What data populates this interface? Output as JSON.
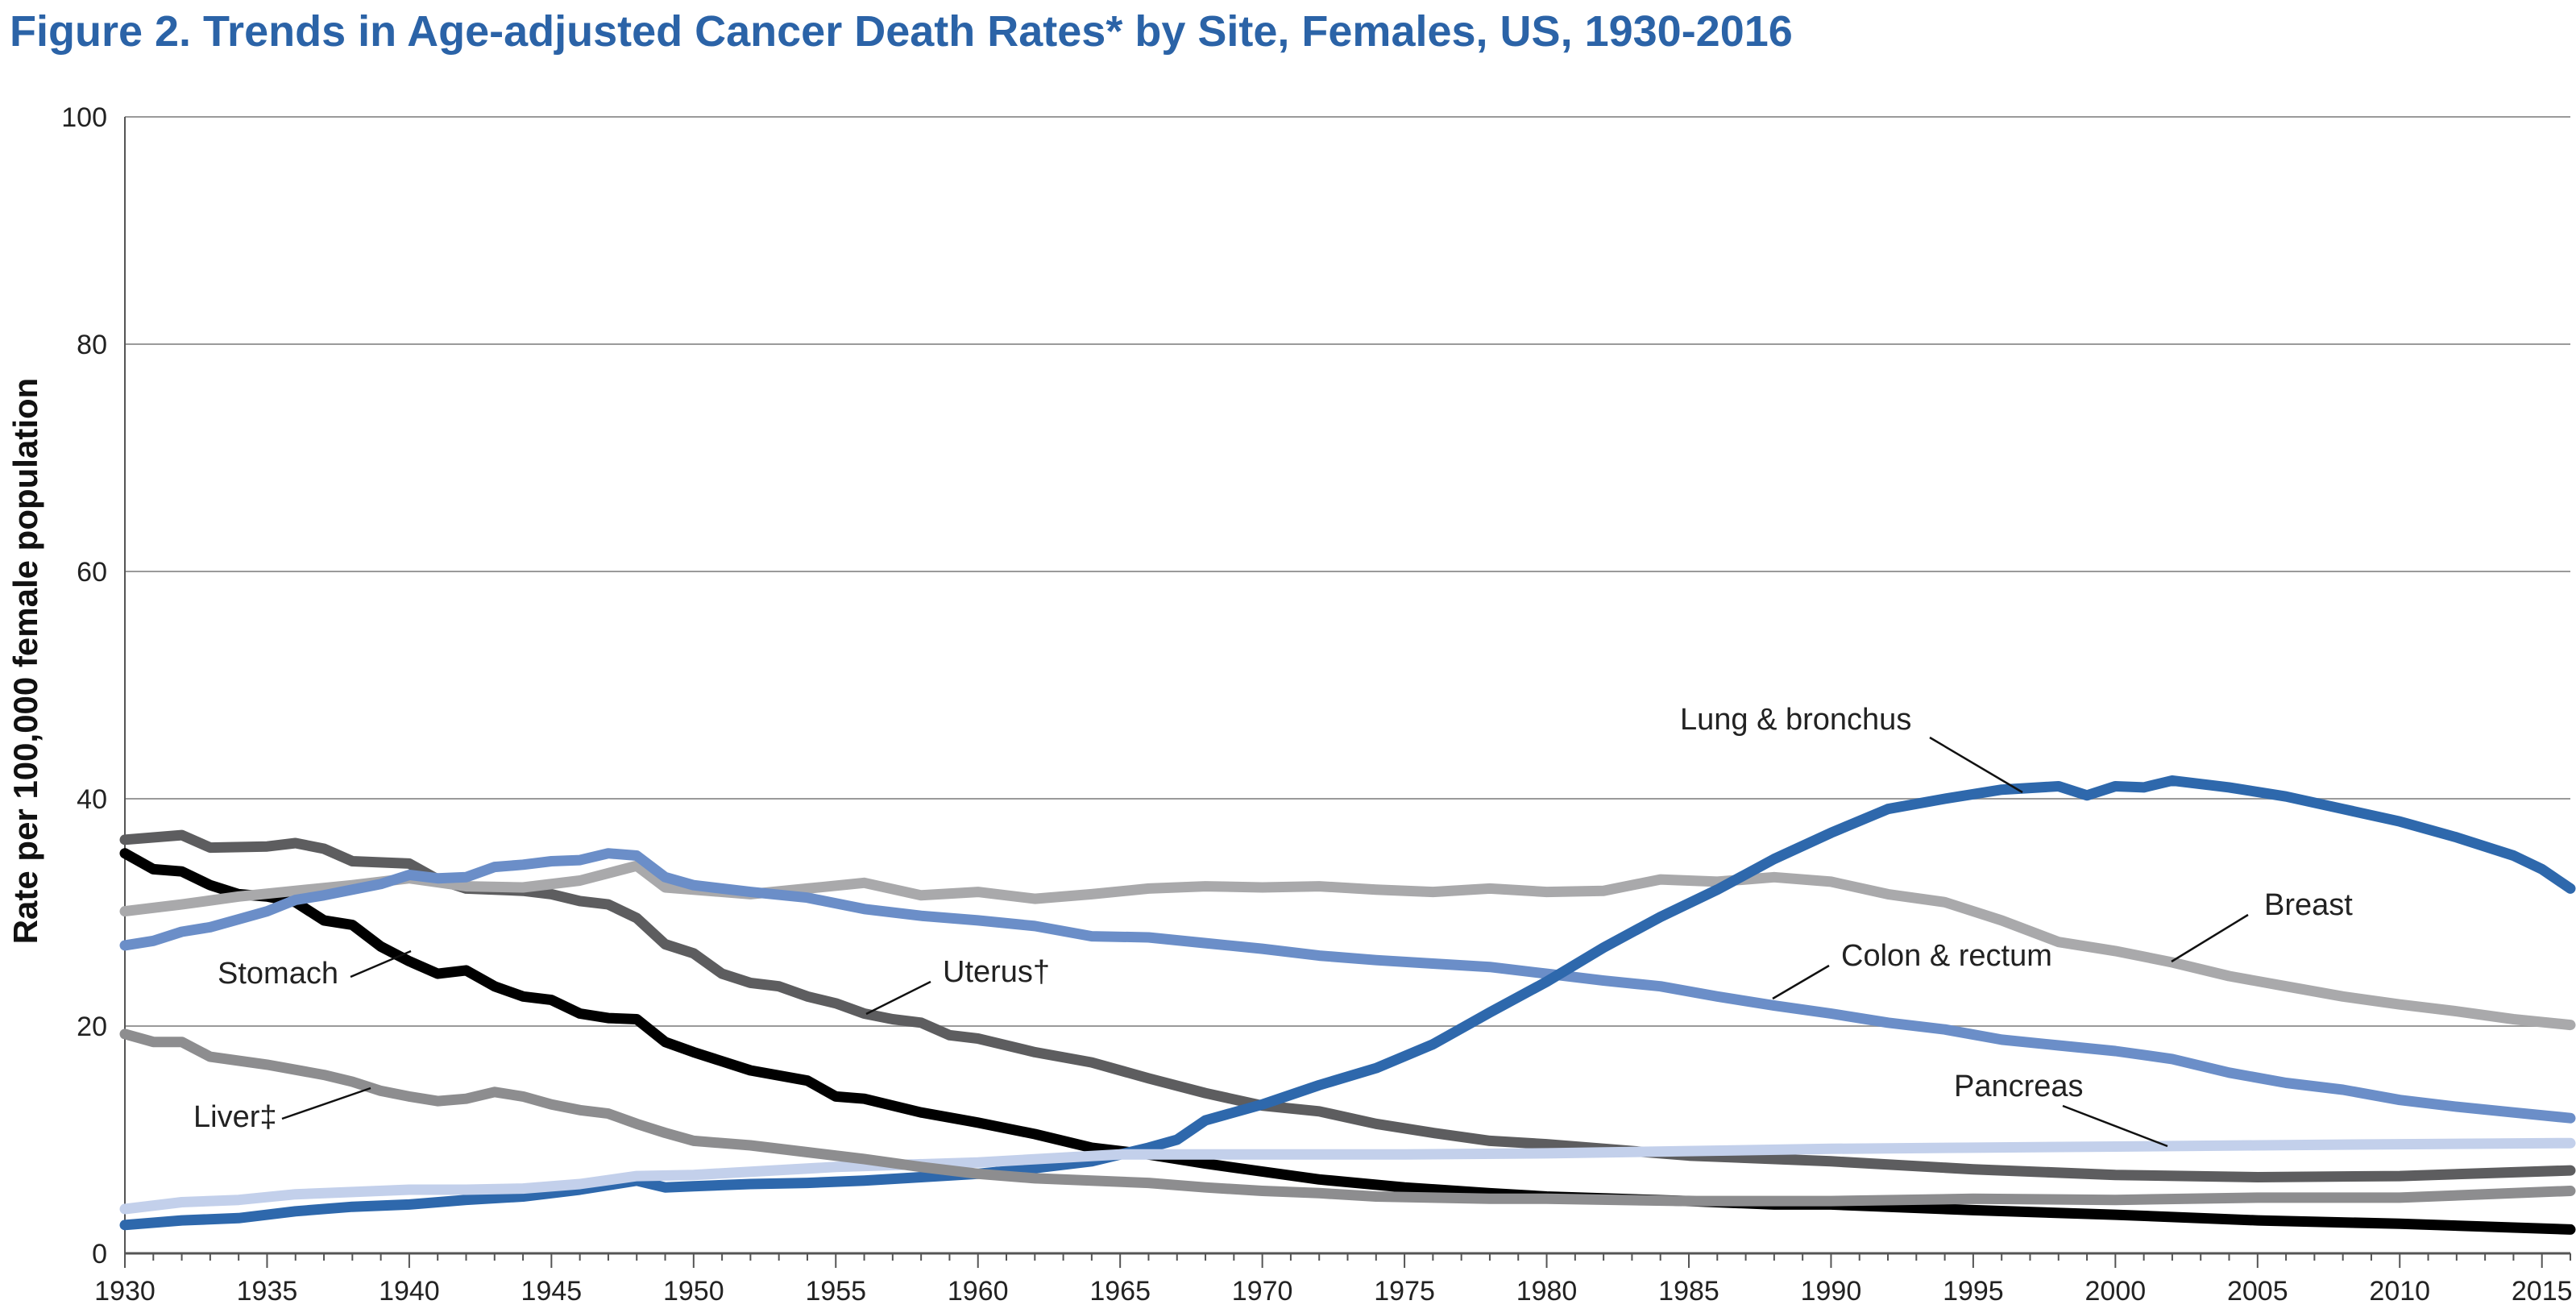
{
  "chart_data": {
    "type": "line",
    "title": "Figure 2. Trends in Age-adjusted Cancer Death Rates* by Site, Females, US, 1930-2016",
    "xlabel": "",
    "ylabel": "Rate per 100,000 female population",
    "xlim": [
      1930,
      2016
    ],
    "ylim": [
      0,
      100
    ],
    "xticks": [
      1930,
      1935,
      1940,
      1945,
      1950,
      1955,
      1960,
      1965,
      1970,
      1975,
      1980,
      1985,
      1990,
      1995,
      2000,
      2005,
      2010,
      2015
    ],
    "yticks": [
      0,
      20,
      40,
      60,
      80,
      100
    ],
    "grid": true,
    "legend": "none",
    "series": [
      {
        "name": "Stomach",
        "color": "#000000",
        "points": [
          [
            1930,
            35.2
          ],
          [
            1931,
            33.8
          ],
          [
            1932,
            33.6
          ],
          [
            1933,
            32.4
          ],
          [
            1934,
            31.6
          ],
          [
            1935,
            31.4
          ],
          [
            1936,
            30.9
          ],
          [
            1937,
            29.3
          ],
          [
            1938,
            28.9
          ],
          [
            1939,
            27.0
          ],
          [
            1940,
            25.7
          ],
          [
            1941,
            24.6
          ],
          [
            1942,
            24.9
          ],
          [
            1943,
            23.5
          ],
          [
            1944,
            22.6
          ],
          [
            1945,
            22.3
          ],
          [
            1946,
            21.1
          ],
          [
            1947,
            20.7
          ],
          [
            1948,
            20.6
          ],
          [
            1949,
            18.6
          ],
          [
            1950,
            17.7
          ],
          [
            1952,
            16.1
          ],
          [
            1954,
            15.2
          ],
          [
            1955,
            13.8
          ],
          [
            1956,
            13.6
          ],
          [
            1958,
            12.4
          ],
          [
            1960,
            11.5
          ],
          [
            1962,
            10.5
          ],
          [
            1964,
            9.3
          ],
          [
            1966,
            8.7
          ],
          [
            1968,
            7.9
          ],
          [
            1970,
            7.2
          ],
          [
            1972,
            6.5
          ],
          [
            1975,
            5.8
          ],
          [
            1978,
            5.3
          ],
          [
            1980,
            5.0
          ],
          [
            1985,
            4.6
          ],
          [
            1988,
            4.3
          ],
          [
            1990,
            4.3
          ],
          [
            1995,
            3.8
          ],
          [
            2000,
            3.4
          ],
          [
            2005,
            2.9
          ],
          [
            2010,
            2.6
          ],
          [
            2016,
            2.1
          ]
        ]
      },
      {
        "name": "Uterus†",
        "color": "#5d5d5f",
        "points": [
          [
            1930,
            36.4
          ],
          [
            1932,
            36.8
          ],
          [
            1933,
            35.7
          ],
          [
            1935,
            35.8
          ],
          [
            1936,
            36.1
          ],
          [
            1937,
            35.6
          ],
          [
            1938,
            34.5
          ],
          [
            1940,
            34.3
          ],
          [
            1941,
            32.9
          ],
          [
            1942,
            32.1
          ],
          [
            1944,
            31.9
          ],
          [
            1945,
            31.6
          ],
          [
            1946,
            31.0
          ],
          [
            1947,
            30.7
          ],
          [
            1948,
            29.5
          ],
          [
            1949,
            27.2
          ],
          [
            1950,
            26.4
          ],
          [
            1951,
            24.6
          ],
          [
            1952,
            23.8
          ],
          [
            1953,
            23.5
          ],
          [
            1954,
            22.6
          ],
          [
            1955,
            22.0
          ],
          [
            1956,
            21.1
          ],
          [
            1957,
            20.6
          ],
          [
            1958,
            20.3
          ],
          [
            1959,
            19.2
          ],
          [
            1960,
            18.9
          ],
          [
            1962,
            17.7
          ],
          [
            1964,
            16.8
          ],
          [
            1966,
            15.4
          ],
          [
            1968,
            14.1
          ],
          [
            1970,
            13.0
          ],
          [
            1972,
            12.5
          ],
          [
            1974,
            11.4
          ],
          [
            1976,
            10.6
          ],
          [
            1978,
            9.9
          ],
          [
            1980,
            9.6
          ],
          [
            1985,
            8.6
          ],
          [
            1990,
            8.1
          ],
          [
            1995,
            7.4
          ],
          [
            2000,
            6.9
          ],
          [
            2005,
            6.7
          ],
          [
            2010,
            6.8
          ],
          [
            2016,
            7.3
          ]
        ]
      },
      {
        "name": "Breast",
        "color": "#a9a9ab",
        "points": [
          [
            1930,
            30.1
          ],
          [
            1932,
            30.7
          ],
          [
            1934,
            31.4
          ],
          [
            1936,
            31.9
          ],
          [
            1938,
            32.4
          ],
          [
            1940,
            33.0
          ],
          [
            1942,
            32.3
          ],
          [
            1944,
            32.2
          ],
          [
            1946,
            32.8
          ],
          [
            1948,
            34.1
          ],
          [
            1949,
            32.2
          ],
          [
            1950,
            32.0
          ],
          [
            1952,
            31.6
          ],
          [
            1954,
            32.1
          ],
          [
            1956,
            32.6
          ],
          [
            1958,
            31.5
          ],
          [
            1960,
            31.8
          ],
          [
            1962,
            31.2
          ],
          [
            1964,
            31.6
          ],
          [
            1966,
            32.1
          ],
          [
            1968,
            32.3
          ],
          [
            1970,
            32.2
          ],
          [
            1972,
            32.3
          ],
          [
            1974,
            32.0
          ],
          [
            1976,
            31.8
          ],
          [
            1978,
            32.1
          ],
          [
            1980,
            31.8
          ],
          [
            1982,
            31.9
          ],
          [
            1984,
            32.9
          ],
          [
            1986,
            32.7
          ],
          [
            1988,
            33.1
          ],
          [
            1990,
            32.7
          ],
          [
            1992,
            31.6
          ],
          [
            1994,
            30.9
          ],
          [
            1996,
            29.3
          ],
          [
            1998,
            27.4
          ],
          [
            2000,
            26.6
          ],
          [
            2002,
            25.6
          ],
          [
            2004,
            24.4
          ],
          [
            2006,
            23.5
          ],
          [
            2008,
            22.6
          ],
          [
            2010,
            21.9
          ],
          [
            2012,
            21.3
          ],
          [
            2014,
            20.6
          ],
          [
            2016,
            20.1
          ]
        ]
      },
      {
        "name": "Colon & rectum",
        "color": "#6b8ec8",
        "points": [
          [
            1930,
            27.1
          ],
          [
            1931,
            27.5
          ],
          [
            1932,
            28.3
          ],
          [
            1933,
            28.7
          ],
          [
            1934,
            29.4
          ],
          [
            1935,
            30.1
          ],
          [
            1936,
            31.1
          ],
          [
            1937,
            31.5
          ],
          [
            1938,
            32.0
          ],
          [
            1939,
            32.5
          ],
          [
            1940,
            33.3
          ],
          [
            1941,
            33.0
          ],
          [
            1942,
            33.1
          ],
          [
            1943,
            34.0
          ],
          [
            1944,
            34.2
          ],
          [
            1945,
            34.5
          ],
          [
            1946,
            34.6
          ],
          [
            1947,
            35.2
          ],
          [
            1948,
            35.0
          ],
          [
            1949,
            33.1
          ],
          [
            1950,
            32.4
          ],
          [
            1952,
            31.8
          ],
          [
            1954,
            31.3
          ],
          [
            1956,
            30.3
          ],
          [
            1958,
            29.7
          ],
          [
            1960,
            29.3
          ],
          [
            1962,
            28.8
          ],
          [
            1964,
            27.9
          ],
          [
            1966,
            27.8
          ],
          [
            1968,
            27.3
          ],
          [
            1970,
            26.8
          ],
          [
            1972,
            26.2
          ],
          [
            1974,
            25.8
          ],
          [
            1976,
            25.5
          ],
          [
            1978,
            25.2
          ],
          [
            1980,
            24.6
          ],
          [
            1982,
            24.0
          ],
          [
            1984,
            23.5
          ],
          [
            1986,
            22.6
          ],
          [
            1988,
            21.8
          ],
          [
            1990,
            21.1
          ],
          [
            1992,
            20.3
          ],
          [
            1994,
            19.7
          ],
          [
            1996,
            18.8
          ],
          [
            1998,
            18.3
          ],
          [
            2000,
            17.8
          ],
          [
            2002,
            17.1
          ],
          [
            2004,
            15.9
          ],
          [
            2006,
            15.0
          ],
          [
            2008,
            14.4
          ],
          [
            2010,
            13.5
          ],
          [
            2012,
            12.9
          ],
          [
            2014,
            12.4
          ],
          [
            2016,
            11.9
          ]
        ]
      },
      {
        "name": "Lung & bronchus",
        "color": "#2e68ac",
        "points": [
          [
            1930,
            2.5
          ],
          [
            1932,
            2.9
          ],
          [
            1934,
            3.1
          ],
          [
            1936,
            3.7
          ],
          [
            1938,
            4.1
          ],
          [
            1940,
            4.3
          ],
          [
            1942,
            4.7
          ],
          [
            1944,
            5.0
          ],
          [
            1946,
            5.6
          ],
          [
            1948,
            6.4
          ],
          [
            1949,
            5.8
          ],
          [
            1950,
            5.9
          ],
          [
            1952,
            6.1
          ],
          [
            1954,
            6.2
          ],
          [
            1956,
            6.4
          ],
          [
            1958,
            6.7
          ],
          [
            1960,
            7.0
          ],
          [
            1962,
            7.5
          ],
          [
            1964,
            8.1
          ],
          [
            1966,
            9.3
          ],
          [
            1967,
            10.0
          ],
          [
            1968,
            11.7
          ],
          [
            1970,
            13.1
          ],
          [
            1972,
            14.8
          ],
          [
            1974,
            16.3
          ],
          [
            1976,
            18.4
          ],
          [
            1978,
            21.2
          ],
          [
            1980,
            23.9
          ],
          [
            1982,
            26.9
          ],
          [
            1984,
            29.6
          ],
          [
            1986,
            32.0
          ],
          [
            1988,
            34.7
          ],
          [
            1990,
            37.0
          ],
          [
            1992,
            39.1
          ],
          [
            1994,
            40.0
          ],
          [
            1996,
            40.8
          ],
          [
            1998,
            41.1
          ],
          [
            1999,
            40.3
          ],
          [
            2000,
            41.1
          ],
          [
            2001,
            41.0
          ],
          [
            2002,
            41.6
          ],
          [
            2004,
            41.0
          ],
          [
            2006,
            40.2
          ],
          [
            2008,
            39.1
          ],
          [
            2010,
            38.0
          ],
          [
            2012,
            36.6
          ],
          [
            2014,
            35.0
          ],
          [
            2015,
            33.8
          ],
          [
            2016,
            32.1
          ]
        ]
      },
      {
        "name": "Pancreas",
        "color": "#c3d0eb",
        "points": [
          [
            1930,
            3.9
          ],
          [
            1932,
            4.5
          ],
          [
            1934,
            4.7
          ],
          [
            1936,
            5.2
          ],
          [
            1938,
            5.4
          ],
          [
            1940,
            5.6
          ],
          [
            1942,
            5.6
          ],
          [
            1944,
            5.7
          ],
          [
            1946,
            6.1
          ],
          [
            1948,
            6.8
          ],
          [
            1950,
            6.9
          ],
          [
            1955,
            7.6
          ],
          [
            1960,
            8.0
          ],
          [
            1965,
            8.7
          ],
          [
            1970,
            8.7
          ],
          [
            1975,
            8.7
          ],
          [
            1980,
            8.8
          ],
          [
            1985,
            9.0
          ],
          [
            1990,
            9.2
          ],
          [
            1995,
            9.3
          ],
          [
            2000,
            9.4
          ],
          [
            2005,
            9.5
          ],
          [
            2010,
            9.6
          ],
          [
            2016,
            9.7
          ]
        ]
      },
      {
        "name": "Liver‡",
        "color": "#8d8d8f",
        "points": [
          [
            1930,
            19.3
          ],
          [
            1931,
            18.6
          ],
          [
            1932,
            18.6
          ],
          [
            1933,
            17.3
          ],
          [
            1935,
            16.6
          ],
          [
            1937,
            15.7
          ],
          [
            1938,
            15.1
          ],
          [
            1939,
            14.3
          ],
          [
            1940,
            13.8
          ],
          [
            1941,
            13.4
          ],
          [
            1942,
            13.6
          ],
          [
            1943,
            14.2
          ],
          [
            1944,
            13.8
          ],
          [
            1945,
            13.1
          ],
          [
            1946,
            12.6
          ],
          [
            1947,
            12.3
          ],
          [
            1948,
            11.4
          ],
          [
            1949,
            10.6
          ],
          [
            1950,
            9.9
          ],
          [
            1952,
            9.5
          ],
          [
            1954,
            8.9
          ],
          [
            1956,
            8.3
          ],
          [
            1958,
            7.6
          ],
          [
            1960,
            7.0
          ],
          [
            1962,
            6.6
          ],
          [
            1964,
            6.4
          ],
          [
            1966,
            6.2
          ],
          [
            1968,
            5.8
          ],
          [
            1970,
            5.5
          ],
          [
            1972,
            5.3
          ],
          [
            1974,
            5.0
          ],
          [
            1976,
            4.9
          ],
          [
            1978,
            4.8
          ],
          [
            1980,
            4.8
          ],
          [
            1985,
            4.6
          ],
          [
            1990,
            4.6
          ],
          [
            1995,
            4.8
          ],
          [
            2000,
            4.7
          ],
          [
            2005,
            4.9
          ],
          [
            2010,
            4.9
          ],
          [
            2016,
            5.5
          ]
        ]
      }
    ],
    "annotations": [
      {
        "text": "Lung & bronchus",
        "series": "Lung & bronchus"
      },
      {
        "text": "Breast",
        "series": "Breast"
      },
      {
        "text": "Colon & rectum",
        "series": "Colon & rectum"
      },
      {
        "text": "Pancreas",
        "series": "Pancreas"
      },
      {
        "text": "Stomach",
        "series": "Stomach"
      },
      {
        "text": "Uterus†",
        "series": "Uterus†"
      },
      {
        "text": "Liver‡",
        "series": "Liver‡"
      }
    ]
  }
}
